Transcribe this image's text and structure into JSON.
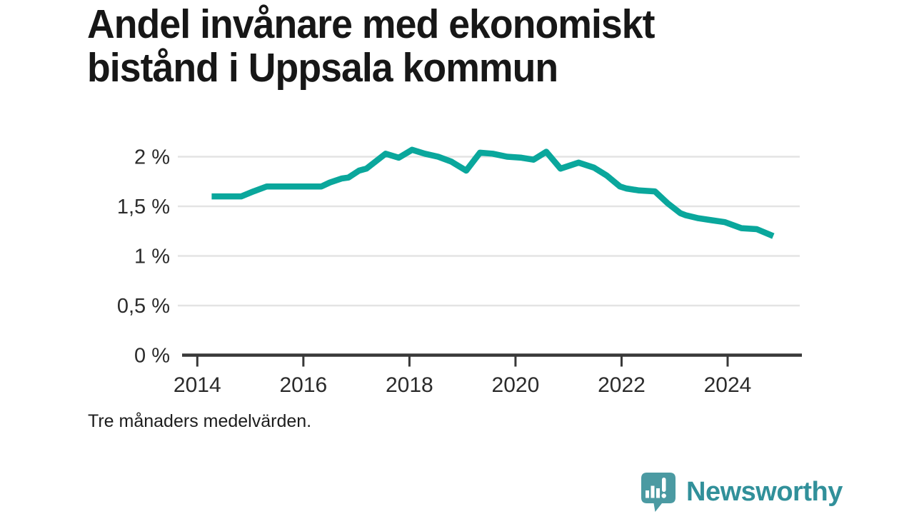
{
  "title": "Andel invånare med ekonomiskt\nbistånd i Uppsala kommun",
  "footnote": "Tre månaders medelvärden.",
  "logo": {
    "text": "Newsworthy",
    "icon": "speech-bubble-bar-chart-icon"
  },
  "colors": {
    "line": "#0aa79c",
    "grid": "#e4e4e4",
    "axis": "#383838",
    "tick_text": "#2b2b2b",
    "title_text": "#171717",
    "logo_mark": "#4b9aa2",
    "logo_text": "#31909a"
  },
  "chart_data": {
    "type": "line",
    "title": "Andel invånare med ekonomiskt bistånd i Uppsala kommun",
    "subtitle": "Tre månaders medelvärden.",
    "xlabel": "",
    "ylabel": "",
    "legend": "none",
    "grid": "horizontal",
    "line_color": "#0aa79c",
    "xlim": [
      2013.74,
      2025.36
    ],
    "ylim": [
      0,
      2.25
    ],
    "x_ticks": {
      "values": [
        2014,
        2016,
        2018,
        2020,
        2022,
        2024
      ],
      "labels": [
        "2014",
        "2016",
        "2018",
        "2020",
        "2022",
        "2024"
      ]
    },
    "y_ticks": {
      "values": [
        0,
        0.5,
        1,
        1.5,
        2
      ],
      "labels": [
        "0 %",
        "0,5 %",
        "1 %",
        "1,5 %",
        "2 %"
      ]
    },
    "x": [
      2014.27,
      2014.83,
      2015.06,
      2015.31,
      2016.34,
      2016.5,
      2016.72,
      2016.85,
      2017.05,
      2017.19,
      2017.55,
      2017.8,
      2018.05,
      2018.29,
      2018.54,
      2018.79,
      2019.07,
      2019.33,
      2019.57,
      2019.84,
      2020.11,
      2020.34,
      2020.58,
      2020.85,
      2021.19,
      2021.48,
      2021.72,
      2021.97,
      2022.09,
      2022.33,
      2022.63,
      2022.87,
      2023.11,
      2023.21,
      2023.45,
      2023.7,
      2023.95,
      2024.26,
      2024.55,
      2024.86
    ],
    "y": [
      1.6,
      1.6,
      1.65,
      1.7,
      1.7,
      1.74,
      1.78,
      1.79,
      1.86,
      1.88,
      2.03,
      1.99,
      2.07,
      2.03,
      2.0,
      1.95,
      1.86,
      2.04,
      2.03,
      2.0,
      1.99,
      1.97,
      2.05,
      1.88,
      1.94,
      1.89,
      1.81,
      1.7,
      1.68,
      1.66,
      1.65,
      1.53,
      1.43,
      1.41,
      1.38,
      1.36,
      1.34,
      1.28,
      1.27,
      1.2
    ]
  }
}
